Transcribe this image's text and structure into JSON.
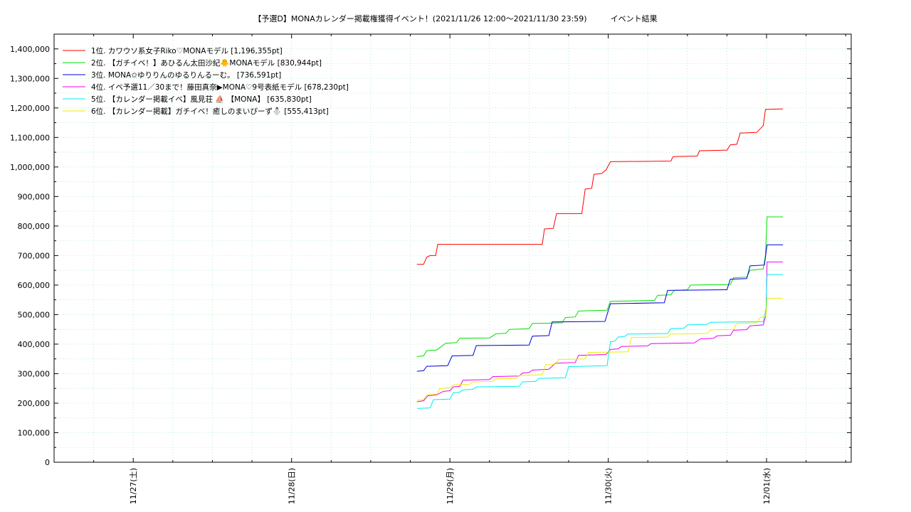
{
  "chart_data": {
    "type": "line",
    "title": "【予選D】MONAカレンダー掲載権獲得イベント！(2021/11/26 12:00〜2021/11/30 23:59)　　　イベント結果",
    "xlabel": "",
    "ylabel": "",
    "ylim": [
      0,
      1450000
    ],
    "xlim": [
      "2021-11-26T12:00",
      "2021-12-01T12:50"
    ],
    "grid": true,
    "legend_position": "top-left",
    "y_ticks": [
      "0",
      "100,000",
      "200,000",
      "300,000",
      "400,000",
      "500,000",
      "600,000",
      "700,000",
      "800,000",
      "900,000",
      "1,000,000",
      "1,100,000",
      "1,200,000",
      "1,300,000",
      "1,400,000"
    ],
    "x_ticks": [
      {
        "x": "2021-11-27T00:00",
        "label": "11/27(土)"
      },
      {
        "x": "2021-11-28T00:00",
        "label": "11/28(日)"
      },
      {
        "x": "2021-11-29T00:00",
        "label": "11/29(月)"
      },
      {
        "x": "2021-11-30T00:00",
        "label": "11/30(火)"
      },
      {
        "x": "2021-12-01T00:00",
        "label": "12/01(水)"
      }
    ],
    "series": [
      {
        "name": "1位. カワウソ系女子Riko♡MONAモデル [1,196,355pt]",
        "color": "#ff0000",
        "points": [
          [
            "2021-11-28T19:00",
            670000
          ],
          [
            "2021-11-28T20:00",
            670000
          ],
          [
            "2021-11-28T20:30",
            695000
          ],
          [
            "2021-11-28T21:00",
            700000
          ],
          [
            "2021-11-28T21:50",
            700000
          ],
          [
            "2021-11-28T22:10",
            738000
          ],
          [
            "2021-11-29T14:00",
            738000
          ],
          [
            "2021-11-29T14:20",
            790000
          ],
          [
            "2021-11-29T15:40",
            792000
          ],
          [
            "2021-11-29T16:10",
            842000
          ],
          [
            "2021-11-29T20:00",
            842000
          ],
          [
            "2021-11-29T20:30",
            925000
          ],
          [
            "2021-11-29T21:30",
            928000
          ],
          [
            "2021-11-29T21:50",
            975000
          ],
          [
            "2021-11-29T23:00",
            978000
          ],
          [
            "2021-11-29T23:40",
            990000
          ],
          [
            "2021-11-30T00:20",
            1018000
          ],
          [
            "2021-11-30T09:30",
            1020000
          ],
          [
            "2021-11-30T09:50",
            1035000
          ],
          [
            "2021-11-30T13:30",
            1037000
          ],
          [
            "2021-11-30T13:50",
            1055000
          ],
          [
            "2021-11-30T18:00",
            1057000
          ],
          [
            "2021-11-30T18:30",
            1075000
          ],
          [
            "2021-11-30T19:30",
            1077000
          ],
          [
            "2021-11-30T20:00",
            1115000
          ],
          [
            "2021-11-30T22:30",
            1117000
          ],
          [
            "2021-11-30T23:30",
            1140000
          ],
          [
            "2021-11-30T23:50",
            1195000
          ],
          [
            "2021-12-01T02:00",
            1196355
          ],
          [
            "2021-12-01T02:30",
            1196355
          ]
        ]
      },
      {
        "name": "2位. 【ガチイベ！】あひるん太田沙紀🐥MONAモデル [830,944pt]",
        "color": "#00e000",
        "points": [
          [
            "2021-11-28T19:00",
            358000
          ],
          [
            "2021-11-28T20:00",
            360000
          ],
          [
            "2021-11-28T20:30",
            378000
          ],
          [
            "2021-11-28T22:00",
            380000
          ],
          [
            "2021-11-28T23:20",
            403000
          ],
          [
            "2021-11-29T01:00",
            405000
          ],
          [
            "2021-11-29T01:30",
            420000
          ],
          [
            "2021-11-29T06:00",
            421000
          ],
          [
            "2021-11-29T07:00",
            435000
          ],
          [
            "2021-11-29T08:30",
            437000
          ],
          [
            "2021-11-29T09:00",
            450000
          ],
          [
            "2021-11-29T12:00",
            452000
          ],
          [
            "2021-11-29T12:30",
            470000
          ],
          [
            "2021-11-29T17:00",
            472000
          ],
          [
            "2021-11-29T17:30",
            490000
          ],
          [
            "2021-11-29T19:00",
            492000
          ],
          [
            "2021-11-29T19:30",
            512000
          ],
          [
            "2021-11-29T23:50",
            515000
          ],
          [
            "2021-11-30T00:20",
            545000
          ],
          [
            "2021-11-30T07:00",
            548000
          ],
          [
            "2021-11-30T07:30",
            565000
          ],
          [
            "2021-11-30T09:30",
            567000
          ],
          [
            "2021-11-30T10:00",
            582000
          ],
          [
            "2021-11-30T12:00",
            584000
          ],
          [
            "2021-11-30T12:30",
            600000
          ],
          [
            "2021-11-30T18:30",
            602000
          ],
          [
            "2021-11-30T19:00",
            625000
          ],
          [
            "2021-11-30T21:00",
            627000
          ],
          [
            "2021-11-30T21:30",
            650000
          ],
          [
            "2021-11-30T23:30",
            655000
          ],
          [
            "2021-11-30T23:50",
            700000
          ],
          [
            "2021-12-01T00:05",
            830944
          ],
          [
            "2021-12-01T02:30",
            830944
          ]
        ]
      },
      {
        "name": "3位. MONA✩ゆりりんのゆるりんるーむ。 [736,591pt]",
        "color": "#0000dd",
        "points": [
          [
            "2021-11-28T19:00",
            308000
          ],
          [
            "2021-11-28T20:00",
            310000
          ],
          [
            "2021-11-28T20:30",
            325000
          ],
          [
            "2021-11-28T23:40",
            327000
          ],
          [
            "2021-11-29T00:20",
            360000
          ],
          [
            "2021-11-29T03:30",
            362000
          ],
          [
            "2021-11-29T04:00",
            395000
          ],
          [
            "2021-11-29T12:00",
            397000
          ],
          [
            "2021-11-29T12:30",
            427000
          ],
          [
            "2021-11-29T15:00",
            429000
          ],
          [
            "2021-11-29T15:30",
            475000
          ],
          [
            "2021-11-29T23:30",
            477000
          ],
          [
            "2021-11-30T00:20",
            537000
          ],
          [
            "2021-11-30T08:30",
            540000
          ],
          [
            "2021-11-30T09:00",
            582000
          ],
          [
            "2021-11-30T18:00",
            584000
          ],
          [
            "2021-11-30T18:30",
            620000
          ],
          [
            "2021-11-30T21:00",
            622000
          ],
          [
            "2021-11-30T21:30",
            665000
          ],
          [
            "2021-11-30T23:40",
            668000
          ],
          [
            "2021-11-30T23:55",
            710000
          ],
          [
            "2021-12-01T00:05",
            736591
          ],
          [
            "2021-12-01T02:30",
            736591
          ]
        ]
      },
      {
        "name": "4位. イベ予選11／30まで！藤田真奈▶MONA♡9号表紙モデル [678,230pt]",
        "color": "#ee00ee",
        "points": [
          [
            "2021-11-28T19:00",
            205000
          ],
          [
            "2021-11-28T20:00",
            208000
          ],
          [
            "2021-11-28T20:40",
            225000
          ],
          [
            "2021-11-28T22:00",
            228000
          ],
          [
            "2021-11-28T23:00",
            240000
          ],
          [
            "2021-11-29T00:00",
            242000
          ],
          [
            "2021-11-29T00:30",
            255000
          ],
          [
            "2021-11-29T01:30",
            257000
          ],
          [
            "2021-11-29T02:00",
            278000
          ],
          [
            "2021-11-29T06:00",
            280000
          ],
          [
            "2021-11-29T06:30",
            290000
          ],
          [
            "2021-11-29T10:30",
            292000
          ],
          [
            "2021-11-29T11:00",
            302000
          ],
          [
            "2021-11-29T12:00",
            304000
          ],
          [
            "2021-11-29T12:30",
            312000
          ],
          [
            "2021-11-29T15:00",
            315000
          ],
          [
            "2021-11-29T16:00",
            335000
          ],
          [
            "2021-11-29T19:00",
            338000
          ],
          [
            "2021-11-29T19:30",
            362000
          ],
          [
            "2021-11-29T23:40",
            365000
          ],
          [
            "2021-11-30T00:20",
            382000
          ],
          [
            "2021-11-30T01:30",
            384000
          ],
          [
            "2021-11-30T02:00",
            392000
          ],
          [
            "2021-11-30T06:00",
            394000
          ],
          [
            "2021-11-30T06:30",
            402000
          ],
          [
            "2021-11-30T13:00",
            404000
          ],
          [
            "2021-11-30T14:00",
            418000
          ],
          [
            "2021-11-30T16:00",
            420000
          ],
          [
            "2021-11-30T16:30",
            428000
          ],
          [
            "2021-11-30T18:30",
            430000
          ],
          [
            "2021-11-30T19:00",
            447000
          ],
          [
            "2021-11-30T21:00",
            449000
          ],
          [
            "2021-11-30T21:30",
            462000
          ],
          [
            "2021-11-30T23:30",
            465000
          ],
          [
            "2021-11-30T23:55",
            500000
          ],
          [
            "2021-12-01T00:05",
            678230
          ],
          [
            "2021-12-01T02:30",
            678230
          ]
        ]
      },
      {
        "name": "5位. 【カレンダー掲載イベ】風見荘 ⛵ 【MONA】 [635,830pt]",
        "color": "#00eeee",
        "points": [
          [
            "2021-11-28T19:00",
            182000
          ],
          [
            "2021-11-28T21:00",
            184000
          ],
          [
            "2021-11-28T21:30",
            212000
          ],
          [
            "2021-11-29T00:00",
            214000
          ],
          [
            "2021-11-29T00:30",
            235000
          ],
          [
            "2021-11-29T01:30",
            237000
          ],
          [
            "2021-11-29T02:00",
            245000
          ],
          [
            "2021-11-29T03:30",
            247000
          ],
          [
            "2021-11-29T04:00",
            255000
          ],
          [
            "2021-11-29T10:30",
            257000
          ],
          [
            "2021-11-29T11:00",
            272000
          ],
          [
            "2021-11-29T13:00",
            274000
          ],
          [
            "2021-11-29T13:30",
            284000
          ],
          [
            "2021-11-29T17:30",
            286000
          ],
          [
            "2021-11-29T18:00",
            324000
          ],
          [
            "2021-11-29T23:50",
            327000
          ],
          [
            "2021-11-30T00:20",
            408000
          ],
          [
            "2021-11-30T01:00",
            410000
          ],
          [
            "2021-11-30T01:30",
            424000
          ],
          [
            "2021-11-30T02:30",
            426000
          ],
          [
            "2021-11-30T03:00",
            434000
          ],
          [
            "2021-11-30T09:00",
            436000
          ],
          [
            "2021-11-30T09:30",
            452000
          ],
          [
            "2021-11-30T11:30",
            454000
          ],
          [
            "2021-11-30T12:00",
            465000
          ],
          [
            "2021-11-30T15:00",
            467000
          ],
          [
            "2021-11-30T15:30",
            474000
          ],
          [
            "2021-11-30T23:30",
            476000
          ],
          [
            "2021-11-30T23:55",
            520000
          ],
          [
            "2021-12-01T00:05",
            635830
          ],
          [
            "2021-12-01T02:30",
            635830
          ]
        ]
      },
      {
        "name": "6位. 【カレンダー掲載】ガチイベ！癒しのまいぴーず⛄ [555,413pt]",
        "color": "#eeee00",
        "points": [
          [
            "2021-11-28T19:00",
            210000
          ],
          [
            "2021-11-28T20:00",
            212000
          ],
          [
            "2021-11-28T20:30",
            228000
          ],
          [
            "2021-11-28T22:00",
            230000
          ],
          [
            "2021-11-28T22:30",
            250000
          ],
          [
            "2021-11-29T00:00",
            252000
          ],
          [
            "2021-11-29T00:30",
            262000
          ],
          [
            "2021-11-29T03:00",
            264000
          ],
          [
            "2021-11-29T03:30",
            272000
          ],
          [
            "2021-11-29T06:30",
            274000
          ],
          [
            "2021-11-29T07:00",
            282000
          ],
          [
            "2021-11-29T10:00",
            284000
          ],
          [
            "2021-11-29T10:30",
            294000
          ],
          [
            "2021-11-29T14:00",
            296000
          ],
          [
            "2021-11-29T14:30",
            330000
          ],
          [
            "2021-11-29T16:00",
            332000
          ],
          [
            "2021-11-29T16:30",
            348000
          ],
          [
            "2021-11-29T20:30",
            350000
          ],
          [
            "2021-11-29T21:00",
            372000
          ],
          [
            "2021-11-30T03:00",
            374000
          ],
          [
            "2021-11-30T03:30",
            422000
          ],
          [
            "2021-11-30T09:00",
            424000
          ],
          [
            "2021-11-30T09:30",
            434000
          ],
          [
            "2021-11-30T15:00",
            436000
          ],
          [
            "2021-11-30T15:30",
            448000
          ],
          [
            "2021-11-30T19:00",
            450000
          ],
          [
            "2021-11-30T19:30",
            470000
          ],
          [
            "2021-11-30T22:30",
            472000
          ],
          [
            "2021-11-30T23:00",
            490000
          ],
          [
            "2021-11-30T23:55",
            495000
          ],
          [
            "2021-12-01T00:05",
            555413
          ],
          [
            "2021-12-01T02:30",
            555413
          ]
        ]
      }
    ]
  }
}
